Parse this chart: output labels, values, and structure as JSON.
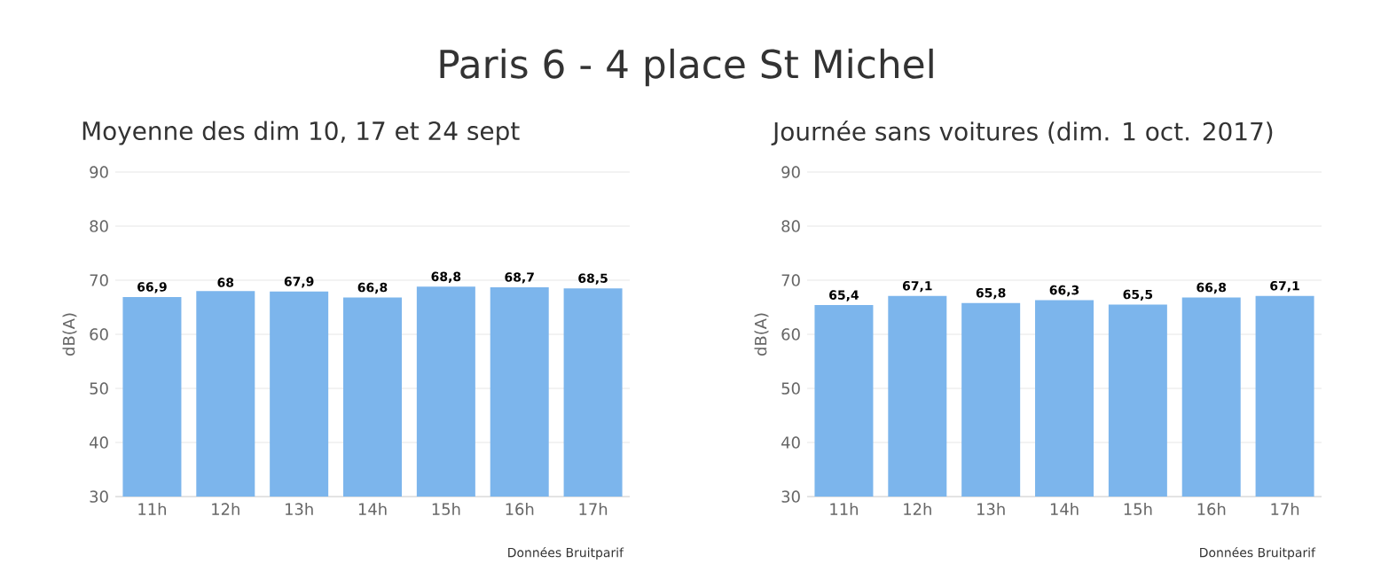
{
  "chart_data": [
    {
      "type": "bar",
      "title": "Paris 6 - 4 place St Michel",
      "subtitle": "Moyenne des dim 10, 17 et 24 sept",
      "ylabel": "dB(A)",
      "categories": [
        "11h",
        "12h",
        "13h",
        "14h",
        "15h",
        "16h",
        "17h"
      ],
      "values": [
        66.9,
        68,
        67.9,
        66.8,
        68.8,
        68.7,
        68.5
      ],
      "value_labels": [
        "66,9",
        "68",
        "67,9",
        "66,8",
        "68,8",
        "68,7",
        "68,5"
      ],
      "color": "#7cb5ec",
      "ylim": [
        30,
        90
      ],
      "yticks": [
        30,
        40,
        50,
        60,
        70,
        80,
        90
      ],
      "grid": "y",
      "annotations": [
        "Données Bruitparif"
      ]
    },
    {
      "type": "bar",
      "subtitle": "Journée sans voitures (dim. 1 oct. 2017)",
      "ylabel": "dB(A)",
      "categories": [
        "11h",
        "12h",
        "13h",
        "14h",
        "15h",
        "16h",
        "17h"
      ],
      "values": [
        65.4,
        67.1,
        65.8,
        66.3,
        65.5,
        66.8,
        67.1
      ],
      "value_labels": [
        "65,4",
        "67,1",
        "65,8",
        "66,3",
        "65,5",
        "66,8",
        "67,1"
      ],
      "color": "#7cb5ec",
      "ylim": [
        30,
        90
      ],
      "yticks": [
        30,
        40,
        50,
        60,
        70,
        80,
        90
      ],
      "grid": "y",
      "annotations": [
        "Données Bruitparif"
      ]
    }
  ]
}
